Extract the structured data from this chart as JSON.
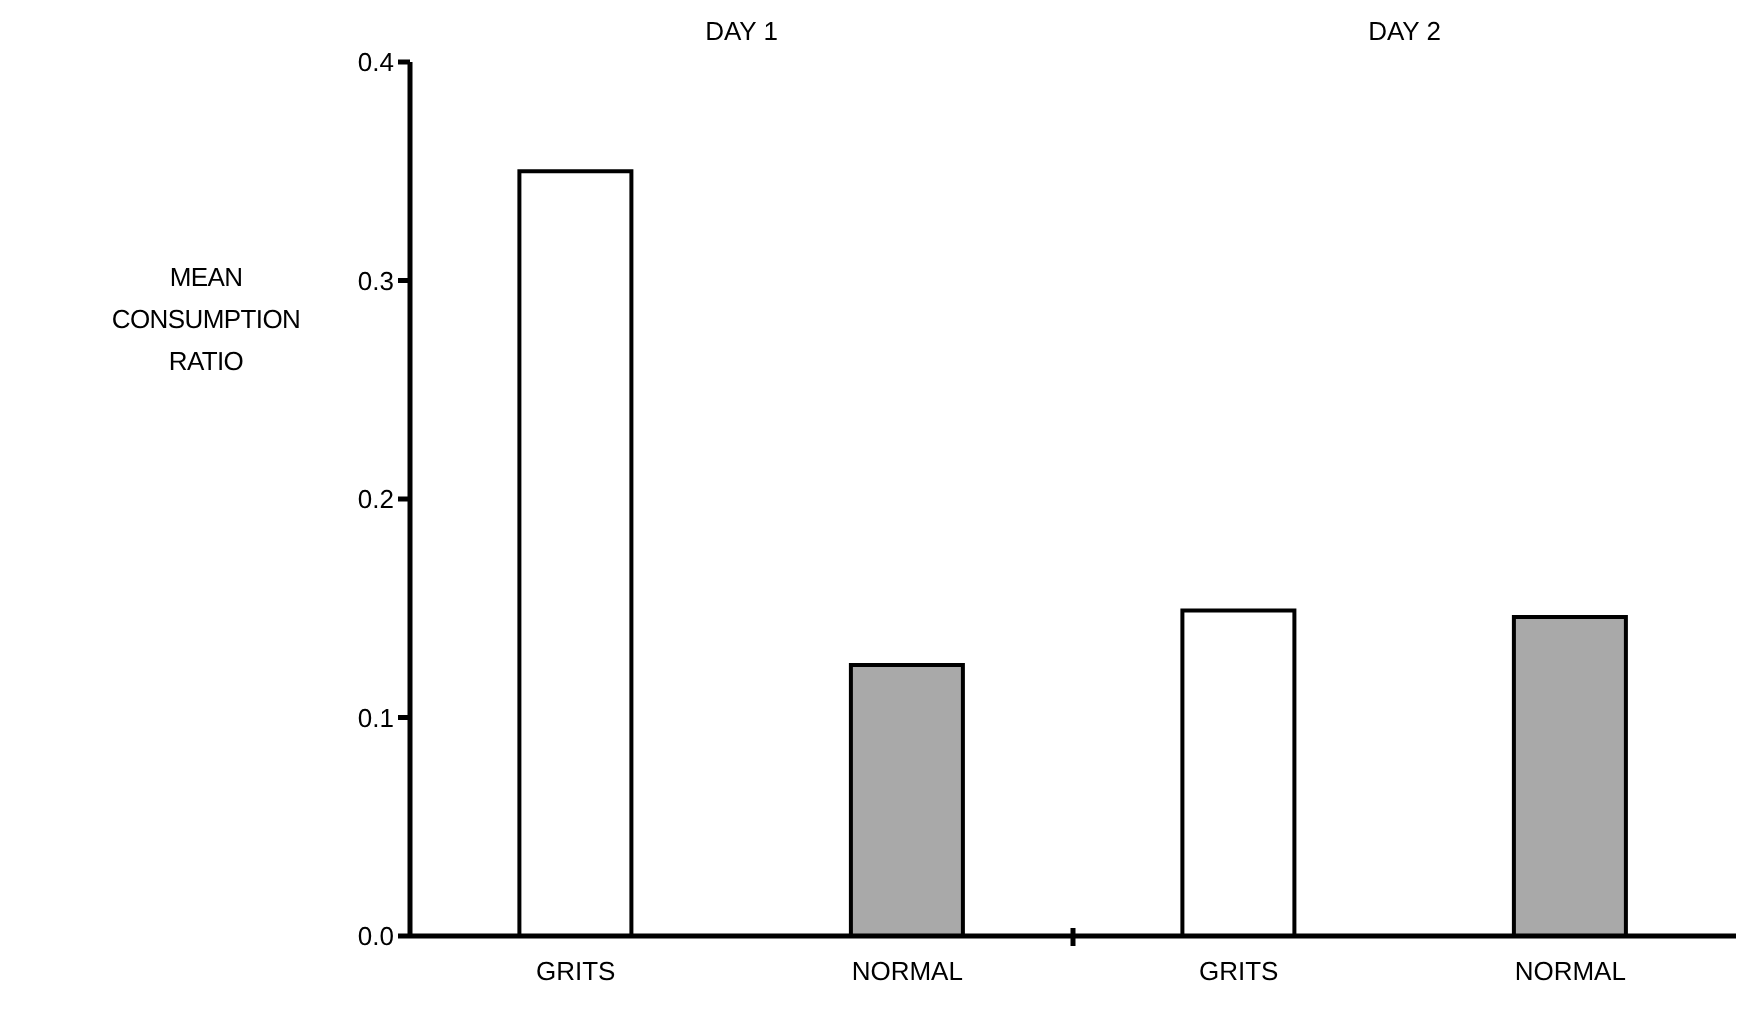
{
  "chart_data": {
    "type": "bar",
    "ylabel": "MEAN CONSUMPTION RATIO",
    "categories": [
      "GRITS",
      "NORMAL",
      "GRITS",
      "NORMAL"
    ],
    "values": [
      0.35,
      0.124,
      0.149,
      0.146
    ],
    "colors": [
      "#ffffff",
      "#a9a9a9",
      "#ffffff",
      "#a9a9a9"
    ],
    "ylim": [
      0,
      0.4
    ],
    "yticks": [
      {
        "value": 0,
        "label": "0.0"
      },
      0.1,
      0.2,
      0.3,
      0.4
    ],
    "annotations": [
      "DAY 1",
      "DAY 2"
    ],
    "grid": false,
    "legend": false
  }
}
